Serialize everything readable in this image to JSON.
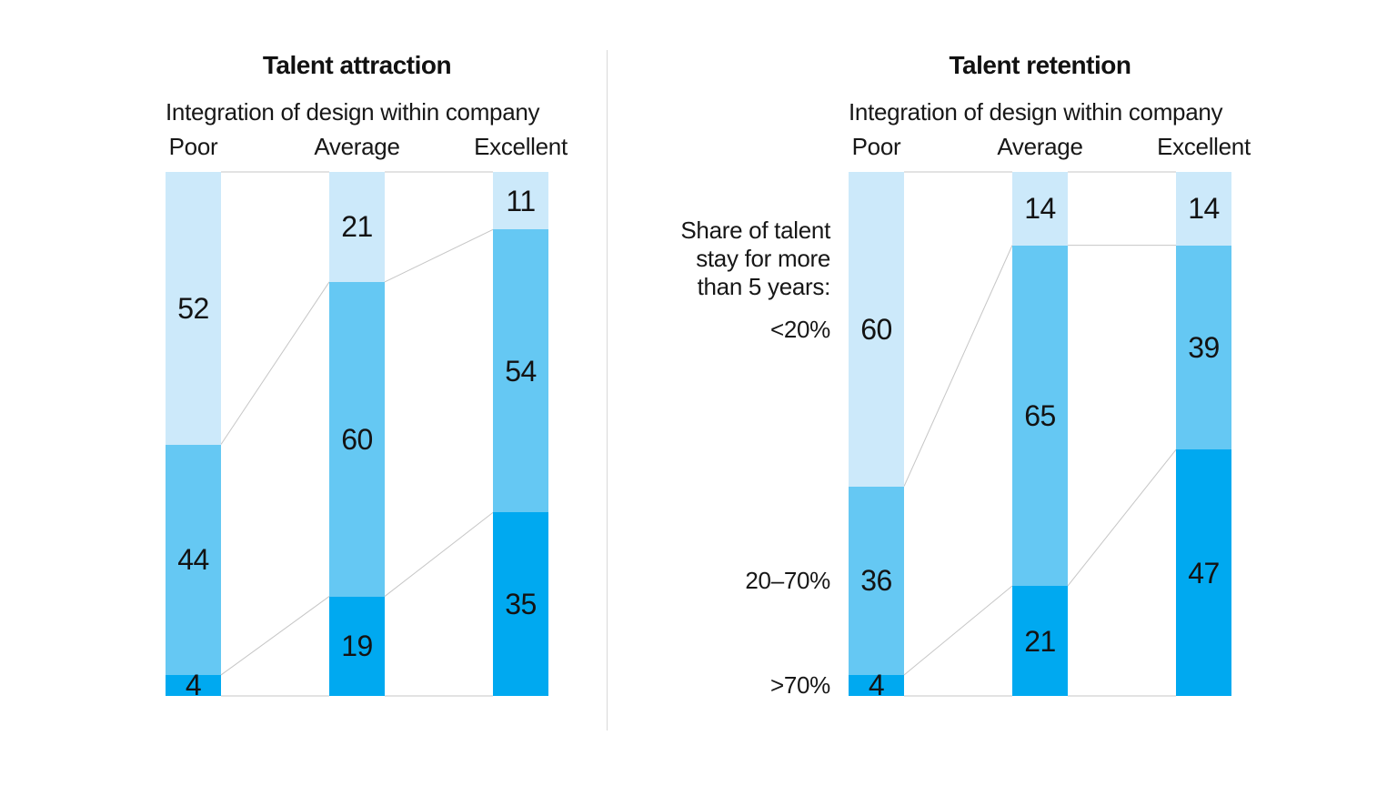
{
  "figure": {
    "background": "#ffffff",
    "divider_color": "#d9d9d9",
    "connector_color": "#c6c6c6",
    "text_color": "#171717"
  },
  "chart_data": [
    {
      "type": "bar",
      "stacked": true,
      "orientation": "vertical",
      "title": "Talent attraction",
      "subtitle": "Integration of design within company",
      "categories": [
        "Poor",
        "Average",
        "Excellent"
      ],
      "series": [
        {
          "color": "#cce9fa",
          "values": [
            52,
            21,
            11
          ]
        },
        {
          "color": "#65c8f3",
          "values": [
            44,
            60,
            54
          ]
        },
        {
          "color": "#00a9f0",
          "values": [
            4,
            19,
            35
          ]
        }
      ],
      "ylim": [
        0,
        100
      ],
      "value_labels": "inside",
      "connectors": true,
      "legend": "none"
    },
    {
      "type": "bar",
      "stacked": true,
      "orientation": "vertical",
      "title": "Talent retention",
      "subtitle": "Integration of design within company",
      "categories": [
        "Poor",
        "Average",
        "Excellent"
      ],
      "row_label_intro": [
        "Share of talent",
        "stay for more",
        "than 5 years:"
      ],
      "series": [
        {
          "name": "<20%",
          "color": "#cce9fa",
          "values": [
            60,
            14,
            14
          ]
        },
        {
          "name": "20–70%",
          "color": "#65c8f3",
          "values": [
            36,
            65,
            39
          ]
        },
        {
          "name": ">70%",
          "color": "#00a9f0",
          "values": [
            4,
            21,
            47
          ]
        }
      ],
      "ylim": [
        0,
        100
      ],
      "value_labels": "inside",
      "connectors": true,
      "legend": "left-row-labels"
    }
  ]
}
